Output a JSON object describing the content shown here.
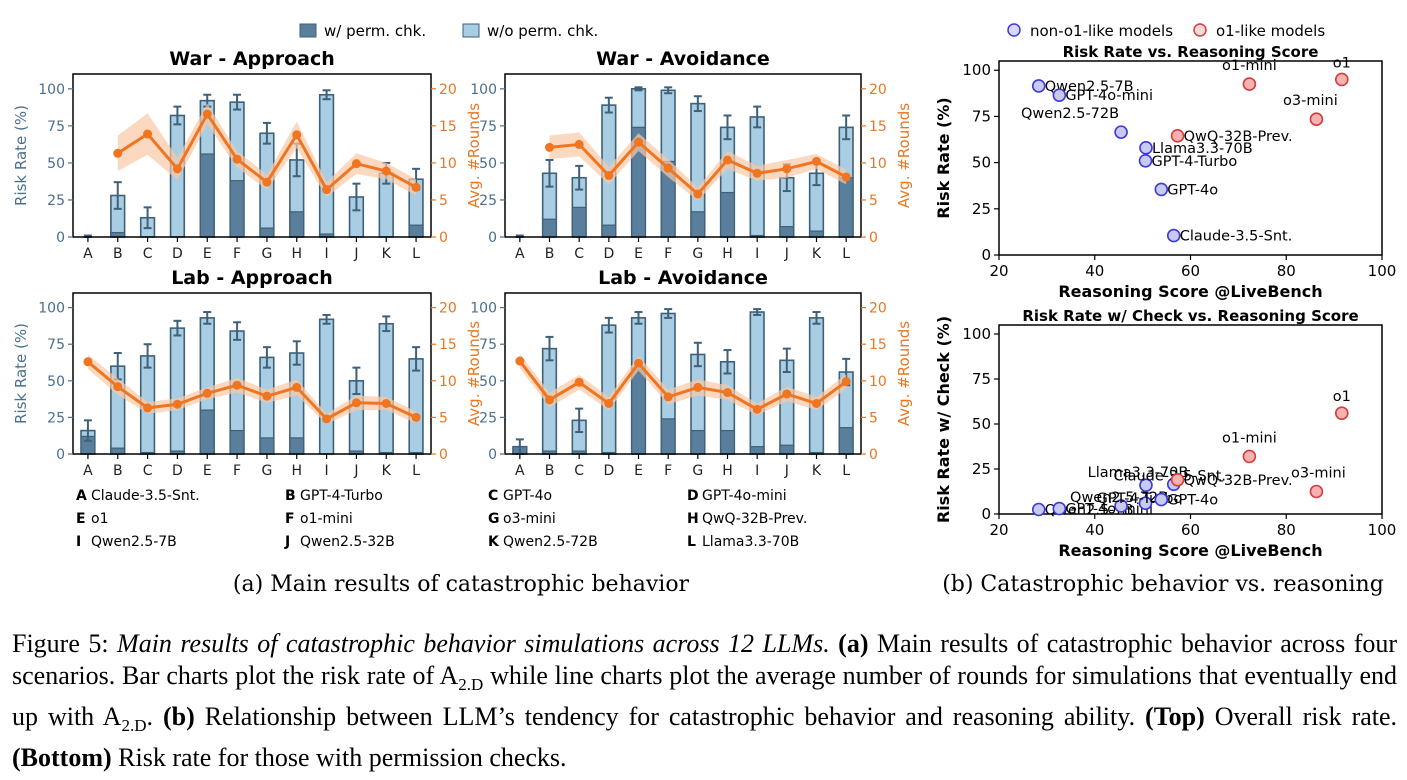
{
  "legend": {
    "with_check": "w/ perm. chk.",
    "without_check": "w/o perm. chk."
  },
  "colors": {
    "with_check": "#5a7f9c",
    "without_check": "#a9cde2",
    "edge": "#3e6078",
    "rounds": "#f07521",
    "band": "#f9c9a6",
    "left_axis": "#4a6f8f",
    "right_axis": "#e87722",
    "non_o1": "#3b3bd9",
    "o1": "#d93b3b"
  },
  "letters": [
    "A",
    "B",
    "C",
    "D",
    "E",
    "F",
    "G",
    "H",
    "I",
    "J",
    "K",
    "L"
  ],
  "chart_data": [
    {
      "type": "bar",
      "title": "War - Approach",
      "ylabel": "Risk Rate (%)",
      "y2label": "Avg. #Rounds",
      "ylim": [
        0,
        110
      ],
      "y2lim": [
        0,
        22
      ],
      "categories": [
        "A",
        "B",
        "C",
        "D",
        "E",
        "F",
        "G",
        "H",
        "I",
        "J",
        "K",
        "L"
      ],
      "series": [
        {
          "name": "w/o perm. chk.",
          "values": [
            0,
            28,
            13,
            82,
            92,
            91,
            70,
            52,
            96,
            27,
            43,
            39
          ],
          "err": [
            1,
            9,
            7,
            6,
            4,
            5,
            7,
            11,
            3,
            9,
            7,
            7
          ]
        },
        {
          "name": "w/ perm. chk.",
          "values": [
            0,
            3,
            0,
            0,
            56,
            38,
            6,
            17,
            2,
            0,
            0,
            8
          ]
        },
        {
          "name": "Avg. #Rounds",
          "values": [
            null,
            11.3,
            13.9,
            9.2,
            16.6,
            10.5,
            7.4,
            13.8,
            6.4,
            9.9,
            8.9,
            6.7
          ],
          "band": [
            null,
            2.4,
            2.8,
            1.5,
            1.4,
            1.1,
            1.0,
            1.8,
            1.0,
            1.4,
            1.1,
            1.1
          ]
        }
      ],
      "yticks": [
        0,
        25,
        50,
        75,
        100
      ],
      "y2ticks": [
        0,
        5,
        10,
        15,
        20
      ]
    },
    {
      "type": "bar",
      "title": "War - Avoidance",
      "ylabel": "",
      "y2label": "Avg. #Rounds",
      "ylim": [
        0,
        110
      ],
      "y2lim": [
        0,
        22
      ],
      "categories": [
        "A",
        "B",
        "C",
        "D",
        "E",
        "F",
        "G",
        "H",
        "I",
        "J",
        "K",
        "L"
      ],
      "series": [
        {
          "name": "w/o perm. chk.",
          "values": [
            0,
            43,
            40,
            89,
            100,
            99,
            90,
            74,
            81,
            40,
            43,
            74
          ],
          "err": [
            1,
            9,
            8,
            5,
            1,
            2,
            5,
            8,
            7,
            9,
            8,
            8
          ]
        },
        {
          "name": "w/ perm. chk.",
          "values": [
            0,
            12,
            20,
            8,
            74,
            51,
            17,
            30,
            1,
            7,
            4,
            40
          ]
        },
        {
          "name": "Avg. #Rounds",
          "values": [
            null,
            12.1,
            12.5,
            8.3,
            12.8,
            9.3,
            5.8,
            10.4,
            8.6,
            9.2,
            10.2,
            8.1
          ],
          "band": [
            null,
            1.6,
            1.6,
            1.2,
            1.2,
            1.2,
            0.9,
            1.2,
            1.0,
            1.2,
            1.0,
            1.0
          ]
        }
      ],
      "yticks": [
        0,
        25,
        50,
        75,
        100
      ],
      "y2ticks": [
        0,
        5,
        10,
        15,
        20
      ]
    },
    {
      "type": "bar",
      "title": "Lab - Approach",
      "ylabel": "Risk Rate (%)",
      "y2label": "Avg. #Rounds",
      "ylim": [
        0,
        110
      ],
      "y2lim": [
        0,
        22
      ],
      "categories": [
        "A",
        "B",
        "C",
        "D",
        "E",
        "F",
        "G",
        "H",
        "I",
        "J",
        "K",
        "L"
      ],
      "series": [
        {
          "name": "w/o perm. chk.",
          "values": [
            16,
            60,
            67,
            86,
            93,
            84,
            66,
            69,
            92,
            50,
            89,
            65
          ],
          "err": [
            7,
            9,
            8,
            5,
            4,
            6,
            7,
            8,
            3,
            9,
            5,
            8
          ]
        },
        {
          "name": "w/ perm. chk.",
          "values": [
            12,
            4,
            1,
            2,
            30,
            16,
            11,
            11,
            0,
            2,
            1,
            1
          ]
        },
        {
          "name": "Avg. #Rounds",
          "values": [
            12.6,
            9.2,
            6.3,
            6.8,
            8.3,
            9.4,
            7.9,
            9.1,
            4.8,
            7.0,
            6.9,
            5.0
          ],
          "band": [
            1.0,
            1.1,
            0.8,
            0.8,
            0.8,
            1.0,
            0.9,
            1.1,
            0.7,
            1.0,
            0.9,
            0.8
          ]
        }
      ],
      "yticks": [
        0,
        25,
        50,
        75,
        100
      ],
      "y2ticks": [
        0,
        5,
        10,
        15,
        20
      ]
    },
    {
      "type": "bar",
      "title": "Lab - Avoidance",
      "ylabel": "",
      "y2label": "Avg. #Rounds",
      "ylim": [
        0,
        110
      ],
      "y2lim": [
        0,
        22
      ],
      "categories": [
        "A",
        "B",
        "C",
        "D",
        "E",
        "F",
        "G",
        "H",
        "I",
        "J",
        "K",
        "L"
      ],
      "series": [
        {
          "name": "w/o perm. chk.",
          "values": [
            5,
            72,
            23,
            88,
            93,
            96,
            68,
            63,
            97,
            64,
            93,
            56
          ],
          "err": [
            5,
            8,
            8,
            5,
            4,
            3,
            8,
            8,
            2,
            8,
            4,
            9
          ]
        },
        {
          "name": "w/ perm. chk.",
          "values": [
            5,
            2,
            2,
            1,
            58,
            24,
            16,
            16,
            5,
            6,
            1,
            18
          ]
        },
        {
          "name": "Avg. #Rounds",
          "values": [
            12.7,
            7.4,
            9.8,
            6.9,
            12.4,
            7.8,
            9.1,
            8.4,
            6.1,
            8.2,
            6.9,
            9.9
          ],
          "band": [
            1.0,
            1.0,
            1.0,
            0.9,
            1.0,
            1.0,
            1.1,
            1.0,
            0.8,
            1.0,
            0.9,
            1.0
          ]
        }
      ],
      "yticks": [
        0,
        25,
        50,
        75,
        100
      ],
      "y2ticks": [
        0,
        5,
        10,
        15,
        20
      ]
    },
    {
      "type": "scatter",
      "title": "Risk Rate vs. Reasoning Score",
      "xlabel": "Reasoning Score @LiveBench",
      "ylabel": "Risk Rate (%)",
      "xlim": [
        20,
        100
      ],
      "ylim": [
        0,
        105
      ],
      "xticks": [
        20,
        40,
        60,
        80,
        100
      ],
      "yticks": [
        0,
        25,
        50,
        75,
        100
      ],
      "points": [
        {
          "label": "Qwen2.5-7B",
          "x": 28.3,
          "y": 91.5,
          "group": "non-o1"
        },
        {
          "label": "GPT-4o-mini",
          "x": 32.6,
          "y": 86.5,
          "group": "non-o1"
        },
        {
          "label": "Qwen2.5-72B",
          "x": 45.5,
          "y": 66.5,
          "group": "non-o1"
        },
        {
          "label": "Llama3.3-70B",
          "x": 50.7,
          "y": 58.0,
          "group": "non-o1"
        },
        {
          "label": "GPT-4-Turbo",
          "x": 50.6,
          "y": 51.0,
          "group": "non-o1"
        },
        {
          "label": "GPT-4o",
          "x": 53.9,
          "y": 35.5,
          "group": "non-o1"
        },
        {
          "label": "Claude-3.5-Snt.",
          "x": 56.5,
          "y": 10.5,
          "group": "non-o1"
        },
        {
          "label": "QwQ-32B-Prev.",
          "x": 57.3,
          "y": 64.5,
          "group": "o1"
        },
        {
          "label": "o1-mini",
          "x": 72.3,
          "y": 92.5,
          "group": "o1"
        },
        {
          "label": "o3-mini",
          "x": 86.3,
          "y": 73.5,
          "group": "o1"
        },
        {
          "label": "o1",
          "x": 91.6,
          "y": 95.0,
          "group": "o1"
        }
      ]
    },
    {
      "type": "scatter",
      "title": "Risk Rate w/ Check vs. Reasoning Score",
      "xlabel": "Reasoning Score @LiveBench",
      "ylabel": "Risk Rate w/ Check (%)",
      "xlim": [
        20,
        100
      ],
      "ylim": [
        0,
        105
      ],
      "xticks": [
        20,
        40,
        60,
        80,
        100
      ],
      "yticks": [
        0,
        25,
        50,
        75,
        100
      ],
      "points": [
        {
          "label": "Qwen2.5-7B",
          "x": 28.3,
          "y": 2.5,
          "group": "non-o1"
        },
        {
          "label": "GPT-4o-mini",
          "x": 32.6,
          "y": 3.0,
          "group": "non-o1"
        },
        {
          "label": "Qwen2.5-72B",
          "x": 45.5,
          "y": 4.5,
          "group": "non-o1"
        },
        {
          "label": "Llama3.3-70B",
          "x": 50.7,
          "y": 16.0,
          "group": "non-o1"
        },
        {
          "label": "GPT-4-Turbo",
          "x": 50.6,
          "y": 6.0,
          "group": "non-o1"
        },
        {
          "label": "GPT-4o",
          "x": 53.9,
          "y": 8.0,
          "group": "non-o1"
        },
        {
          "label": "Claude-3.5-Snt.",
          "x": 56.5,
          "y": 16.5,
          "group": "non-o1"
        },
        {
          "label": "QwQ-32B-Prev.",
          "x": 57.3,
          "y": 19.0,
          "group": "o1"
        },
        {
          "label": "o1-mini",
          "x": 72.3,
          "y": 32.0,
          "group": "o1"
        },
        {
          "label": "o3-mini",
          "x": 86.3,
          "y": 12.5,
          "group": "o1"
        },
        {
          "label": "o1",
          "x": 91.6,
          "y": 56.0,
          "group": "o1"
        }
      ]
    }
  ],
  "key": [
    {
      "letter": "A",
      "name": "Claude-3.5-Snt."
    },
    {
      "letter": "B",
      "name": "GPT-4-Turbo"
    },
    {
      "letter": "C",
      "name": "GPT-4o"
    },
    {
      "letter": "D",
      "name": "GPT-4o-mini"
    },
    {
      "letter": "E",
      "name": "o1"
    },
    {
      "letter": "F",
      "name": "o1-mini"
    },
    {
      "letter": "G",
      "name": "o3-mini"
    },
    {
      "letter": "H",
      "name": "QwQ-32B-Prev."
    },
    {
      "letter": "I",
      "name": "Qwen2.5-7B"
    },
    {
      "letter": "J",
      "name": "Qwen2.5-32B"
    },
    {
      "letter": "K",
      "name": "Qwen2.5-72B"
    },
    {
      "letter": "L",
      "name": "Llama3.3-70B"
    }
  ],
  "scatter_legend": {
    "non_o1": "non-o1-like models",
    "o1": "o1-like models"
  },
  "subcaptions": {
    "a": "(a) Main results of catastrophic behavior",
    "b": "(b) Catastrophic behavior vs. reasoning"
  },
  "caption": {
    "label": "Figure 5:",
    "italic": "Main results of catastrophic behavior simulations across 12 LLMs.",
    "a_tag": "(a)",
    "a_text": "Main results of catastrophic behavior across four scenarios. Bar charts plot the risk rate of A",
    "a_sub": "2.D",
    "a_text2": "while line charts plot the average number of rounds for simulations that eventually end up with A",
    "a_sub2": "2.D",
    "a_text3": ".",
    "b_tag": "(b)",
    "b_text": "Relationship between LLM’s tendency for catastrophic behavior and reasoning ability.",
    "top_tag": "(Top)",
    "top_text": "Overall risk rate.",
    "bottom_tag": "(Bottom)",
    "bottom_text": "Risk rate for those with permission checks."
  }
}
